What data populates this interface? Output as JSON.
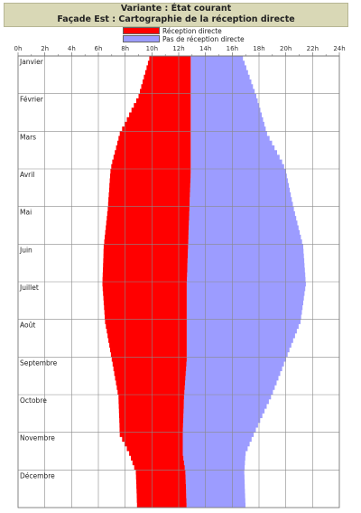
{
  "header": {
    "title": "Variante : État courant",
    "subtitle": "Façade Est : Cartographie de la réception directe"
  },
  "chart_data": {
    "type": "area",
    "legend": [
      {
        "label": "Réception directe",
        "color": "#ff0000"
      },
      {
        "label": "Pas de réception directe",
        "color": "#9c9cff"
      }
    ],
    "x_ticks": [
      "0h",
      "2h",
      "4h",
      "6h",
      "8h",
      "10h",
      "12h",
      "14h",
      "16h",
      "18h",
      "20h",
      "22h",
      "24h"
    ],
    "xlim": [
      0,
      24
    ],
    "months": [
      "Janvier",
      "Février",
      "Mars",
      "Avril",
      "Mai",
      "Juin",
      "Juillet",
      "Août",
      "Septembre",
      "Octobre",
      "Novembre",
      "Décembre"
    ],
    "grid": true,
    "profile": {
      "month_position": [
        0.0,
        1.0,
        2.0,
        2.8,
        3.0,
        4.0,
        5.0,
        6.0,
        7.0,
        8.0,
        9.0,
        10.0,
        10.5,
        11.0,
        12.0
      ],
      "sunrise_hour": [
        9.8,
        9.0,
        7.6,
        7.0,
        6.9,
        6.7,
        6.4,
        6.3,
        6.5,
        7.0,
        7.5,
        7.6,
        8.3,
        8.8,
        8.9
      ],
      "direct_end_hour": [
        12.9,
        12.9,
        12.9,
        12.9,
        12.9,
        12.8,
        12.7,
        12.6,
        12.6,
        12.6,
        12.4,
        12.3,
        12.3,
        12.5,
        12.6
      ],
      "sunset_hour": [
        16.8,
        17.8,
        18.6,
        19.8,
        20.0,
        20.6,
        21.3,
        21.5,
        21.1,
        20.0,
        18.9,
        17.6,
        17.0,
        16.9,
        17.0
      ]
    }
  }
}
